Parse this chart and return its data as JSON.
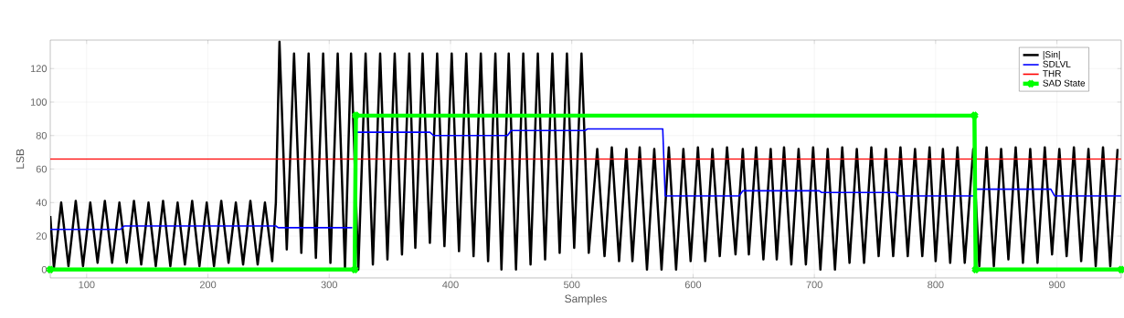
{
  "chart_data": {
    "type": "line",
    "xlabel": "Samples",
    "ylabel": "LSB",
    "xlim": [
      70,
      953
    ],
    "ylim": [
      -5,
      137
    ],
    "xticks": [
      100,
      200,
      300,
      400,
      500,
      600,
      700,
      800,
      900
    ],
    "yticks": [
      0,
      20,
      40,
      60,
      80,
      100,
      120
    ],
    "grid": true,
    "legend": "top right",
    "series": [
      {
        "name": "|Sin|",
        "color": "#000000",
        "marker": "none",
        "x": [
          70,
          73,
          79,
          85,
          91,
          97,
          103,
          109,
          115,
          121,
          127,
          133,
          139,
          145,
          151,
          157,
          163,
          169,
          175,
          181,
          187,
          193,
          199,
          205,
          211,
          217,
          223,
          229,
          235,
          241,
          247,
          253,
          256,
          259,
          265,
          271,
          277,
          283,
          289,
          295,
          301,
          307,
          313,
          318,
          324,
          330,
          336,
          342,
          348,
          354,
          360,
          366,
          371,
          377,
          383,
          389,
          395,
          401,
          407,
          413,
          419,
          425,
          431,
          437,
          442,
          448,
          454,
          460,
          466,
          472,
          478,
          484,
          490,
          496,
          502,
          508,
          514,
          521,
          527,
          533,
          539,
          545,
          550,
          556,
          562,
          568,
          574,
          580,
          586,
          592,
          598,
          604,
          610,
          616,
          622,
          628,
          635,
          641,
          646,
          652,
          658,
          664,
          669,
          675,
          681,
          687,
          693,
          699,
          705,
          711,
          717,
          723,
          729,
          735,
          741,
          747,
          753,
          759,
          765,
          771,
          777,
          783,
          789,
          795,
          800,
          806,
          812,
          818,
          824,
          831,
          836,
          842,
          848,
          854,
          860,
          866,
          872,
          878,
          884,
          890,
          896,
          902,
          908,
          914,
          920,
          926,
          932,
          938,
          944,
          950
        ],
        "values": [
          32,
          1,
          40,
          2,
          41,
          2,
          40,
          4,
          41,
          4,
          40,
          4,
          41,
          3,
          40,
          2,
          41,
          2,
          40,
          3,
          41,
          2,
          40,
          2,
          41,
          4,
          40,
          3,
          41,
          3,
          40,
          5,
          40,
          136,
          12,
          129,
          10,
          129,
          7,
          129,
          4,
          129,
          1,
          129,
          0,
          129,
          3,
          129,
          6,
          129,
          9,
          129,
          13,
          129,
          16,
          129,
          14,
          129,
          11,
          129,
          8,
          129,
          5,
          129,
          0,
          129,
          0,
          129,
          3,
          129,
          6,
          129,
          10,
          129,
          13,
          129,
          10,
          72,
          8,
          73,
          5,
          72,
          5,
          73,
          0,
          72,
          0,
          73,
          0,
          72,
          5,
          73,
          5,
          72,
          8,
          73,
          9,
          72,
          9,
          73,
          6,
          72,
          6,
          73,
          3,
          72,
          3,
          73,
          0,
          72,
          0,
          73,
          4,
          72,
          4,
          73,
          8,
          72,
          8,
          73,
          8,
          72,
          8,
          73,
          5,
          72,
          4,
          73,
          4,
          72,
          2,
          73,
          2,
          72,
          6,
          73,
          4,
          72,
          4,
          73,
          9,
          72,
          8,
          73,
          5,
          72,
          2,
          73,
          2,
          72
        ]
      },
      {
        "name": "SDLVL",
        "color": "#0000ff",
        "marker": "none",
        "x": [
          70,
          128,
          131,
          256,
          258,
          319,
          320,
          322,
          383,
          386,
          447,
          450,
          511,
          513,
          575,
          577,
          638,
          641,
          704,
          706,
          767,
          769,
          831,
          832,
          834,
          895,
          898,
          953
        ],
        "values": [
          24,
          24,
          26,
          26,
          25,
          25,
          null,
          82,
          82,
          80,
          80,
          83,
          83,
          84,
          84,
          44,
          44,
          47,
          47,
          46,
          46,
          44,
          44,
          null,
          48,
          48,
          44,
          44
        ]
      },
      {
        "name": "THR",
        "color": "#ff0000",
        "marker": "none",
        "x": [
          70,
          953
        ],
        "values": [
          66,
          66
        ]
      },
      {
        "name": "SAD State",
        "color": "#00ff00",
        "marker": "cross",
        "x": [
          70,
          321,
          322,
          832,
          833,
          953
        ],
        "values": [
          0,
          0,
          92,
          92,
          0,
          0
        ]
      }
    ]
  }
}
